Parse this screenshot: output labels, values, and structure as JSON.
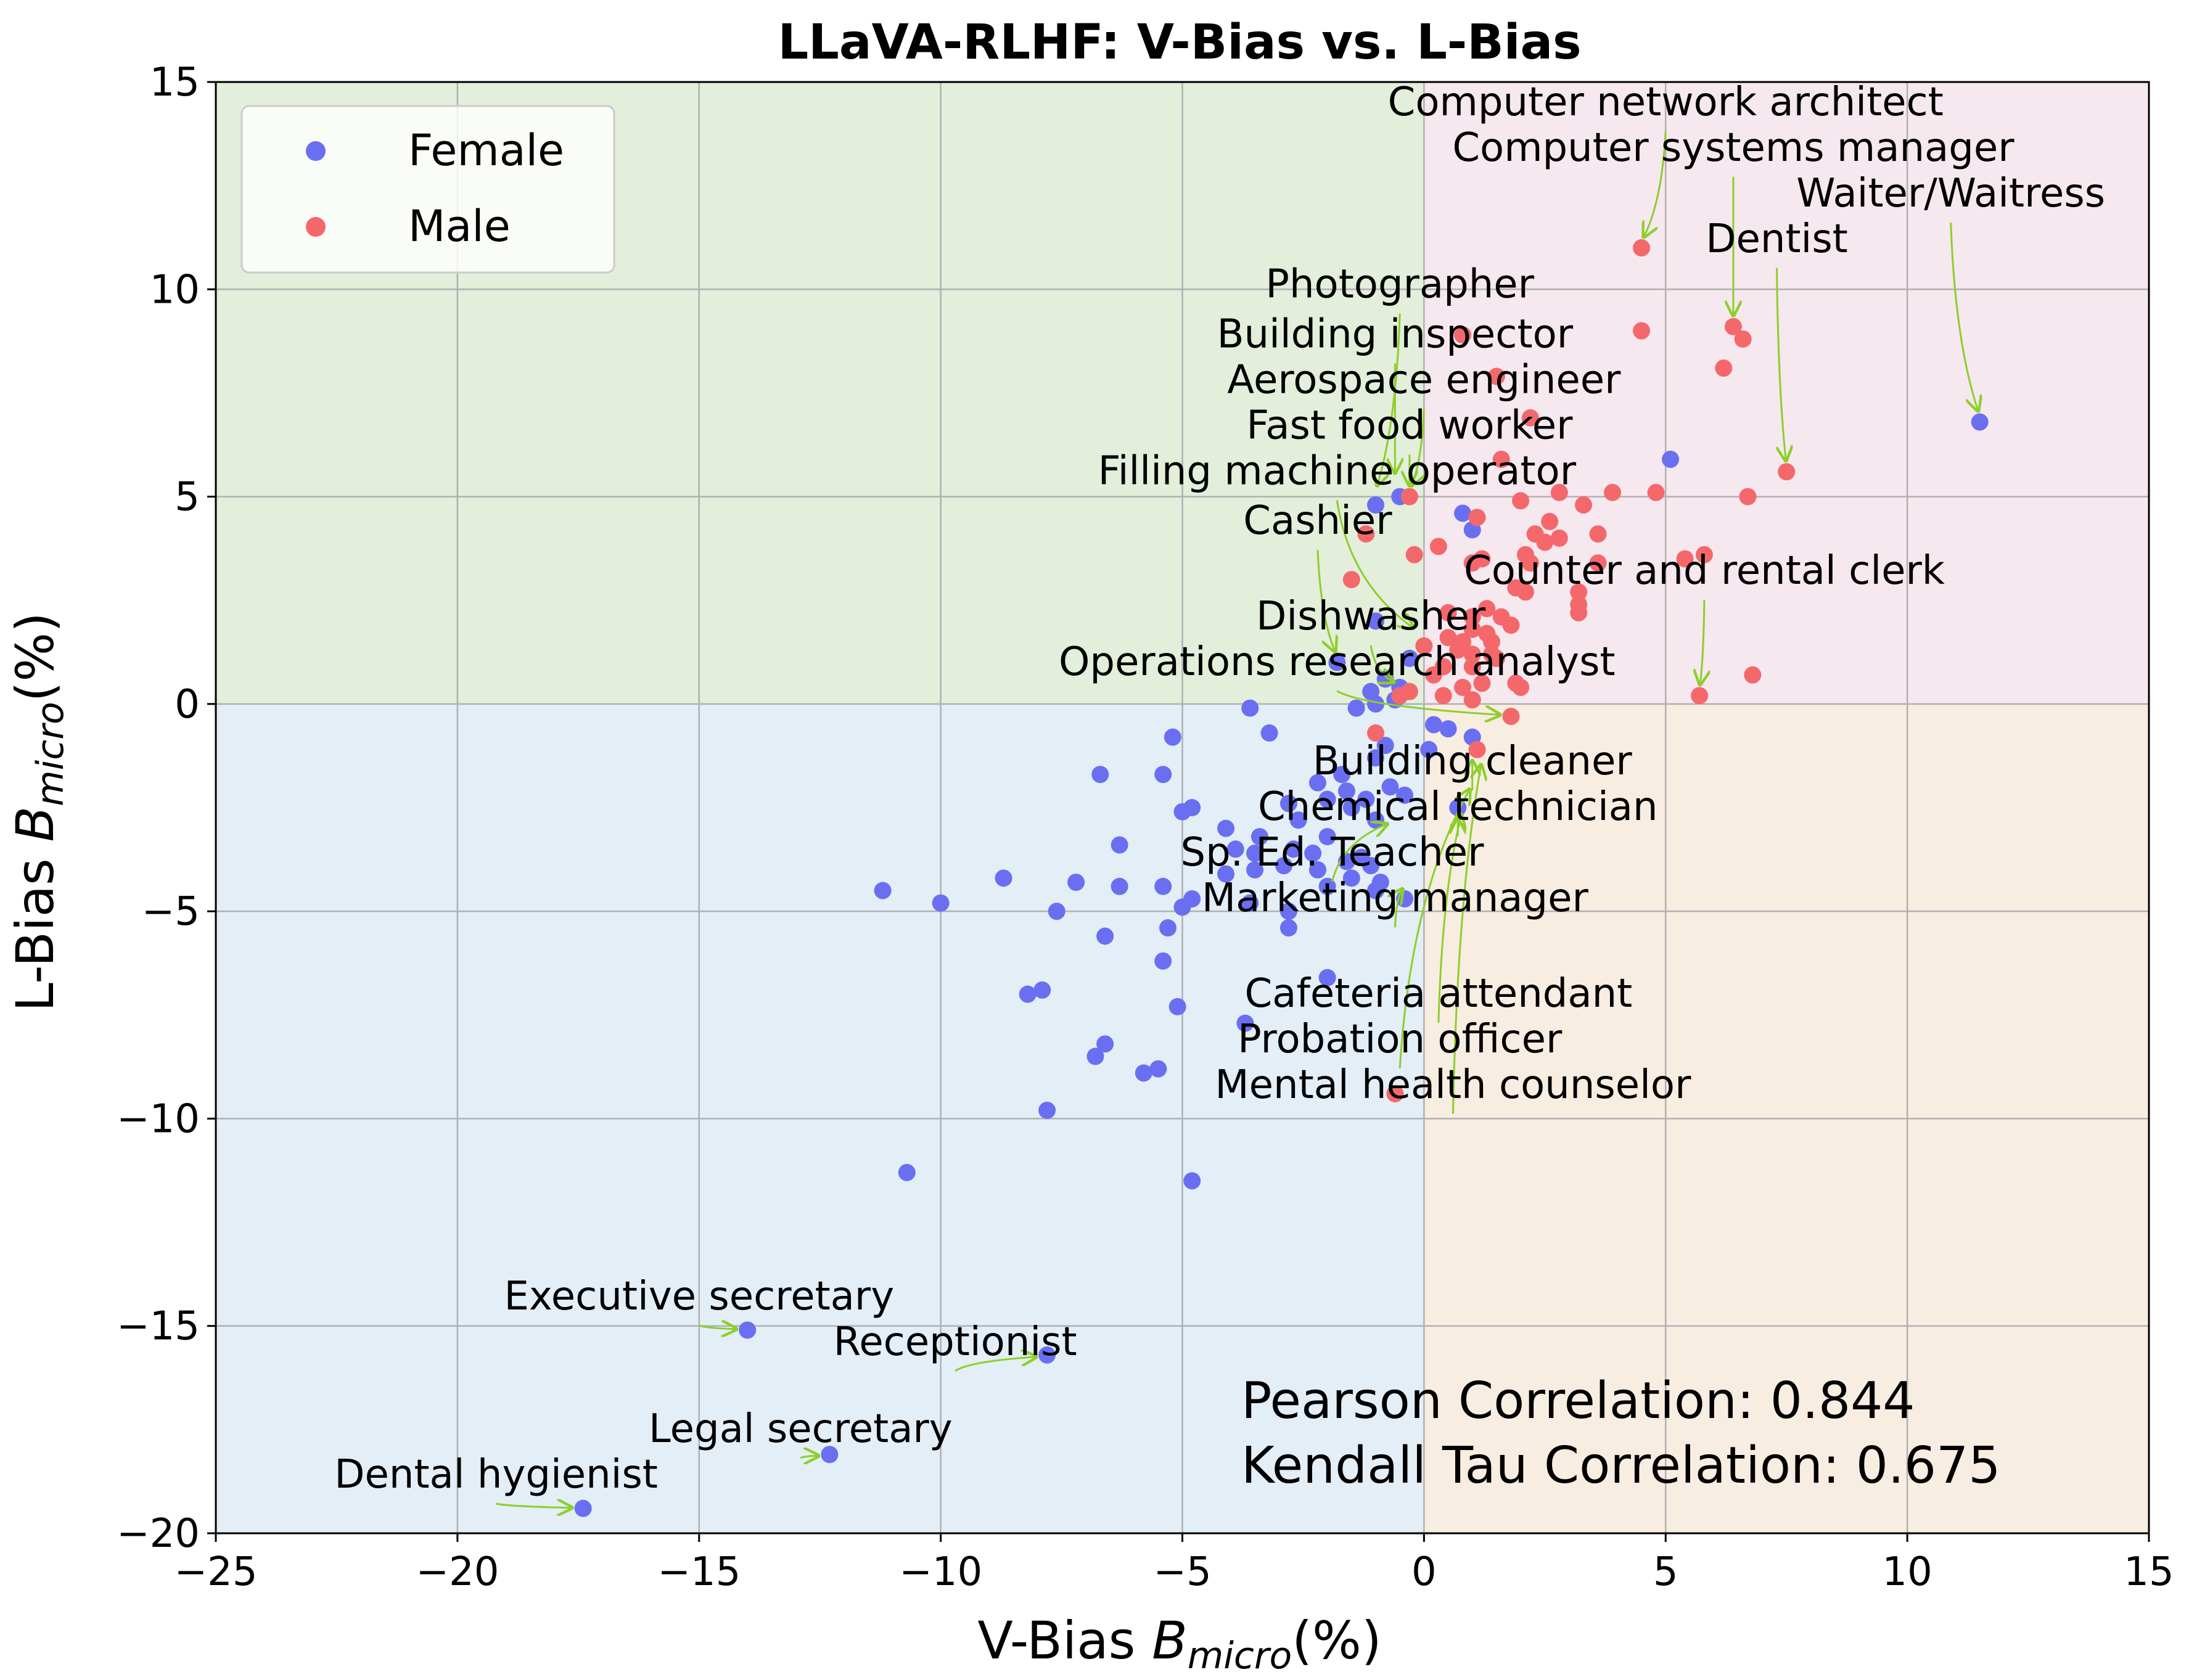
{
  "chart_data": {
    "type": "scatter",
    "title": "LLaVA-RLHF: V-Bias vs. L-Bias",
    "xlabel_prefix": "V-Bias  ",
    "ylabel_prefix": "L-Bias  ",
    "axis_symbol": "B",
    "axis_subscript": "micro",
    "axis_unit": "(%)",
    "xlim": [
      -25,
      15
    ],
    "ylim": [
      -20,
      15
    ],
    "xticks": [
      -25,
      -20,
      -15,
      -10,
      -5,
      0,
      5,
      10,
      15
    ],
    "yticks": [
      -20,
      -15,
      -10,
      -5,
      0,
      5,
      10,
      15
    ],
    "xtick_labels": [
      "−25",
      "−20",
      "−15",
      "−10",
      "−5",
      "0",
      "5",
      "10",
      "15"
    ],
    "ytick_labels": [
      "−20",
      "−15",
      "−10",
      "−5",
      "0",
      "5",
      "10",
      "15"
    ],
    "grid": true,
    "legend_position": "top-left",
    "quadrant_colors": {
      "top_left": "#e3eedb",
      "top_right": "#f6e8ef",
      "bottom_left": "#e3eef7",
      "bottom_right": "#f8ede1"
    },
    "series": [
      {
        "name": "Female",
        "color": "#6a6ff2",
        "points": [
          [
            11.5,
            6.8
          ],
          [
            5.1,
            5.9
          ],
          [
            0.8,
            4.6
          ],
          [
            1.0,
            4.2
          ],
          [
            -0.5,
            5.0
          ],
          [
            -1.0,
            4.8
          ],
          [
            -1.0,
            2.0
          ],
          [
            -0.3,
            1.1
          ],
          [
            -1.8,
            1.0
          ],
          [
            -0.8,
            0.6
          ],
          [
            -0.5,
            0.4
          ],
          [
            -1.1,
            0.3
          ],
          [
            -0.6,
            0.1
          ],
          [
            -1.0,
            0.0
          ],
          [
            -1.4,
            -0.1
          ],
          [
            -3.6,
            -0.1
          ],
          [
            0.2,
            -0.5
          ],
          [
            0.5,
            -0.6
          ],
          [
            1.0,
            -0.8
          ],
          [
            -5.2,
            -0.8
          ],
          [
            -3.2,
            -0.7
          ],
          [
            -1.0,
            -1.3
          ],
          [
            -0.8,
            -1.0
          ],
          [
            0.1,
            -1.1
          ],
          [
            -6.7,
            -1.7
          ],
          [
            -5.4,
            -1.7
          ],
          [
            -1.7,
            -1.7
          ],
          [
            -2.2,
            -1.9
          ],
          [
            -1.6,
            -2.1
          ],
          [
            -0.7,
            -2.0
          ],
          [
            -1.2,
            -2.3
          ],
          [
            -2.0,
            -2.3
          ],
          [
            -0.4,
            -2.2
          ],
          [
            -2.8,
            -2.4
          ],
          [
            -4.8,
            -2.5
          ],
          [
            -5.0,
            -2.6
          ],
          [
            -1.5,
            -2.5
          ],
          [
            0.7,
            -2.5
          ],
          [
            -2.6,
            -2.8
          ],
          [
            -1.0,
            -2.8
          ],
          [
            -2.0,
            -3.2
          ],
          [
            -4.1,
            -3.0
          ],
          [
            -3.4,
            -3.2
          ],
          [
            -2.7,
            -3.5
          ],
          [
            -2.3,
            -3.6
          ],
          [
            -3.9,
            -3.5
          ],
          [
            -3.5,
            -3.6
          ],
          [
            -6.3,
            -3.4
          ],
          [
            -1.3,
            -3.7
          ],
          [
            -1.6,
            -3.8
          ],
          [
            -1.1,
            -3.9
          ],
          [
            -2.9,
            -3.9
          ],
          [
            -3.5,
            -4.0
          ],
          [
            -2.2,
            -4.0
          ],
          [
            -1.5,
            -4.2
          ],
          [
            -0.9,
            -4.3
          ],
          [
            -1.0,
            -4.5
          ],
          [
            -0.4,
            -4.7
          ],
          [
            -2.0,
            -4.4
          ],
          [
            -4.1,
            -4.1
          ],
          [
            -5.4,
            -4.4
          ],
          [
            -6.3,
            -4.4
          ],
          [
            -7.2,
            -4.3
          ],
          [
            -8.7,
            -4.2
          ],
          [
            -11.2,
            -4.5
          ],
          [
            -10.0,
            -4.8
          ],
          [
            -3.6,
            -4.8
          ],
          [
            -4.8,
            -4.7
          ],
          [
            -5.0,
            -4.9
          ],
          [
            -7.6,
            -5.0
          ],
          [
            -2.8,
            -5.0
          ],
          [
            -2.8,
            -5.4
          ],
          [
            -5.3,
            -5.4
          ],
          [
            -6.6,
            -5.6
          ],
          [
            -5.4,
            -6.2
          ],
          [
            -2.0,
            -6.6
          ],
          [
            -8.2,
            -7.0
          ],
          [
            -7.9,
            -6.9
          ],
          [
            -5.1,
            -7.3
          ],
          [
            -3.7,
            -7.7
          ],
          [
            -6.6,
            -8.2
          ],
          [
            -6.8,
            -8.5
          ],
          [
            -5.5,
            -8.8
          ],
          [
            -5.8,
            -8.9
          ],
          [
            -7.8,
            -9.8
          ],
          [
            -10.7,
            -11.3
          ],
          [
            -4.8,
            -11.5
          ],
          [
            -14.0,
            -15.1
          ],
          [
            -7.8,
            -15.7
          ],
          [
            -12.3,
            -18.1
          ],
          [
            -17.4,
            -19.4
          ]
        ]
      },
      {
        "name": "Male",
        "color": "#f4686c",
        "points": [
          [
            4.5,
            11.0
          ],
          [
            6.4,
            9.1
          ],
          [
            6.6,
            8.8
          ],
          [
            4.5,
            9.0
          ],
          [
            0.8,
            8.9
          ],
          [
            6.2,
            8.1
          ],
          [
            1.5,
            7.9
          ],
          [
            2.2,
            6.9
          ],
          [
            7.5,
            5.6
          ],
          [
            1.6,
            5.9
          ],
          [
            -0.3,
            5.0
          ],
          [
            2.0,
            4.9
          ],
          [
            2.8,
            5.1
          ],
          [
            3.3,
            4.8
          ],
          [
            3.9,
            5.1
          ],
          [
            4.8,
            5.1
          ],
          [
            6.7,
            5.0
          ],
          [
            1.1,
            4.5
          ],
          [
            2.6,
            4.4
          ],
          [
            2.3,
            4.1
          ],
          [
            3.6,
            4.1
          ],
          [
            2.5,
            3.9
          ],
          [
            2.8,
            4.0
          ],
          [
            -1.2,
            4.1
          ],
          [
            0.3,
            3.8
          ],
          [
            2.1,
            3.6
          ],
          [
            -0.2,
            3.6
          ],
          [
            1.2,
            3.5
          ],
          [
            1.0,
            3.4
          ],
          [
            2.2,
            3.4
          ],
          [
            3.6,
            3.4
          ],
          [
            5.8,
            3.6
          ],
          [
            5.4,
            3.5
          ],
          [
            -1.5,
            3.0
          ],
          [
            1.9,
            2.8
          ],
          [
            2.1,
            2.7
          ],
          [
            3.2,
            2.7
          ],
          [
            3.2,
            2.4
          ],
          [
            3.2,
            2.2
          ],
          [
            1.3,
            2.3
          ],
          [
            1.0,
            2.1
          ],
          [
            0.5,
            2.2
          ],
          [
            1.6,
            2.1
          ],
          [
            1.8,
            1.9
          ],
          [
            1.0,
            1.8
          ],
          [
            1.3,
            1.7
          ],
          [
            0.5,
            1.6
          ],
          [
            0.8,
            1.5
          ],
          [
            1.4,
            1.5
          ],
          [
            0.0,
            1.4
          ],
          [
            0.7,
            1.3
          ],
          [
            1.0,
            1.2
          ],
          [
            1.4,
            1.2
          ],
          [
            1.5,
            1.1
          ],
          [
            0.4,
            0.9
          ],
          [
            1.0,
            0.9
          ],
          [
            0.2,
            0.7
          ],
          [
            1.2,
            0.5
          ],
          [
            0.8,
            0.4
          ],
          [
            2.0,
            0.4
          ],
          [
            1.9,
            0.5
          ],
          [
            -0.3,
            0.3
          ],
          [
            -0.5,
            0.2
          ],
          [
            0.4,
            0.2
          ],
          [
            1.0,
            0.1
          ],
          [
            5.7,
            0.2
          ],
          [
            6.8,
            0.7
          ],
          [
            1.1,
            -1.1
          ],
          [
            1.8,
            -0.3
          ],
          [
            -1.0,
            -0.7
          ],
          [
            -0.6,
            -9.4
          ]
        ]
      }
    ],
    "annotations": [
      {
        "text": "Computer network architect",
        "x": 4.5,
        "y": 11.0,
        "text_x": 5.0,
        "text_y": 14.2
      },
      {
        "text": "Computer systems manager",
        "x": 6.4,
        "y": 9.1,
        "text_x": 6.4,
        "text_y": 13.1
      },
      {
        "text": "Waiter/Waitress",
        "x": 11.5,
        "y": 6.8,
        "text_x": 10.9,
        "text_y": 12.0
      },
      {
        "text": "Dentist",
        "x": 7.5,
        "y": 5.6,
        "text_x": 7.3,
        "text_y": 10.9
      },
      {
        "text": "Photographer",
        "x": -1.0,
        "y": 5.0,
        "text_x": -0.5,
        "text_y": 9.8
      },
      {
        "text": "Building inspector",
        "x": -0.6,
        "y": 5.3,
        "text_x": -0.6,
        "text_y": 8.6
      },
      {
        "text": "Aerospace engineer",
        "x": -0.3,
        "y": 5.0,
        "text_x": 0.0,
        "text_y": 7.5
      },
      {
        "text": "Fast food worker",
        "x": -0.3,
        "y": 5.0,
        "text_x": -0.3,
        "text_y": 6.4
      },
      {
        "text": "Filling machine operator",
        "x": -0.1,
        "y": 1.6,
        "text_x": -1.8,
        "text_y": 5.3
      },
      {
        "text": "Cashier",
        "x": -1.8,
        "y": 1.0,
        "text_x": -2.2,
        "text_y": 4.1
      },
      {
        "text": "Counter and rental clerk",
        "x": 5.7,
        "y": 0.2,
        "text_x": 5.8,
        "text_y": 2.9
      },
      {
        "text": "Dishwasher",
        "x": -0.5,
        "y": 0.3,
        "text_x": -1.1,
        "text_y": 1.8
      },
      {
        "text": "Operations research analyst",
        "x": 1.8,
        "y": -0.3,
        "text_x": -1.8,
        "text_y": 0.7
      },
      {
        "text": "Building cleaner",
        "x": 1.0,
        "y": -1.1,
        "text_x": 1.0,
        "text_y": -1.7
      },
      {
        "text": "Chemical technician",
        "x": 0.7,
        "y": -2.5,
        "text_x": 0.7,
        "text_y": -2.8
      },
      {
        "text": "Sp. Ed. Teacher",
        "x": -0.6,
        "y": -2.7,
        "text_x": -1.9,
        "text_y": -3.9
      },
      {
        "text": "Marketing manager",
        "x": -0.4,
        "y": -4.2,
        "text_x": -0.6,
        "text_y": -5.0
      },
      {
        "text": "Cafeteria attendant",
        "x": 0.8,
        "y": -2.4,
        "text_x": 0.3,
        "text_y": -7.3
      },
      {
        "text": "Probation officer",
        "x": 1.0,
        "y": -1.8,
        "text_x": -0.5,
        "text_y": -8.4
      },
      {
        "text": "Mental health counselor",
        "x": 1.2,
        "y": -1.2,
        "text_x": 0.6,
        "text_y": -9.5
      },
      {
        "text": "Executive secretary",
        "x": -14.0,
        "y": -15.1,
        "text_x": -15.0,
        "text_y": -14.6
      },
      {
        "text": "Receptionist",
        "x": -7.8,
        "y": -15.7,
        "text_x": -9.7,
        "text_y": -15.7
      },
      {
        "text": "Legal secretary",
        "x": -12.3,
        "y": -18.1,
        "text_x": -12.9,
        "text_y": -17.8
      },
      {
        "text": "Dental hygienist",
        "x": -17.4,
        "y": -19.4,
        "text_x": -19.2,
        "text_y": -18.9
      }
    ],
    "annotation_arrow_color": "#8ccf2a",
    "stats": {
      "pearson": "Pearson Correlation: 0.844",
      "kendall": "Kendall Tau Correlation: 0.675"
    }
  }
}
